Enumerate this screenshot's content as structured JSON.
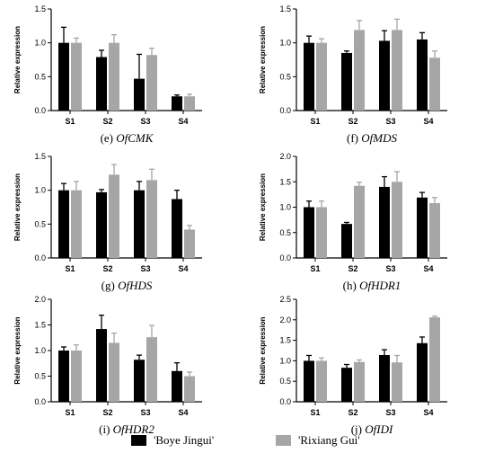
{
  "legend": [
    {
      "label": "'Boye Jingui'",
      "color": "#000000"
    },
    {
      "label": "'Rixiang Gui'",
      "color": "#a6a6a6"
    }
  ],
  "chart_data": [
    {
      "type": "bar",
      "panel": "(e)",
      "gene": "OfCMK",
      "ylabel": "Relative expression",
      "categories": [
        "S1",
        "S2",
        "S3",
        "S4"
      ],
      "ylim": [
        0,
        1.5
      ],
      "yticks": [
        "0.0",
        "0.5",
        "1.0",
        "1.5"
      ],
      "series": [
        {
          "name": "'Boye Jingui'",
          "values": [
            1.0,
            0.79,
            0.47,
            0.21
          ],
          "errors": [
            0.23,
            0.1,
            0.36,
            0.02
          ]
        },
        {
          "name": "'Rixiang Gui'",
          "values": [
            1.0,
            1.0,
            0.82,
            0.21
          ],
          "errors": [
            0.07,
            0.12,
            0.1,
            0.03
          ]
        }
      ]
    },
    {
      "type": "bar",
      "panel": "(f)",
      "gene": "OfMDS",
      "ylabel": "Relative expression",
      "categories": [
        "S1",
        "S2",
        "S3",
        "S4"
      ],
      "ylim": [
        0,
        1.5
      ],
      "yticks": [
        "0.0",
        "0.5",
        "1.0",
        "1.5"
      ],
      "series": [
        {
          "name": "'Boye Jingui'",
          "values": [
            1.0,
            0.85,
            1.03,
            1.05
          ],
          "errors": [
            0.1,
            0.03,
            0.15,
            0.1
          ]
        },
        {
          "name": "'Rixiang Gui'",
          "values": [
            1.0,
            1.19,
            1.19,
            0.78
          ],
          "errors": [
            0.06,
            0.14,
            0.16,
            0.1
          ]
        }
      ]
    },
    {
      "type": "bar",
      "panel": "(g)",
      "gene": "OfHDS",
      "ylabel": "Relative expression",
      "categories": [
        "S1",
        "S2",
        "S3",
        "S4"
      ],
      "ylim": [
        0,
        1.5
      ],
      "yticks": [
        "0.0",
        "0.5",
        "1.0",
        "1.5"
      ],
      "series": [
        {
          "name": "'Boye Jingui'",
          "values": [
            1.0,
            0.97,
            1.0,
            0.87
          ],
          "errors": [
            0.1,
            0.04,
            0.13,
            0.13
          ]
        },
        {
          "name": "'Rixiang Gui'",
          "values": [
            1.0,
            1.23,
            1.15,
            0.42
          ],
          "errors": [
            0.13,
            0.15,
            0.16,
            0.06
          ]
        }
      ]
    },
    {
      "type": "bar",
      "panel": "(h)",
      "gene": "OfHDR1",
      "ylabel": "Relative expression",
      "categories": [
        "S1",
        "S2",
        "S3",
        "S4"
      ],
      "ylim": [
        0,
        2.0
      ],
      "yticks": [
        "0.0",
        "0.5",
        "1.0",
        "1.5",
        "2.0"
      ],
      "series": [
        {
          "name": "'Boye Jingui'",
          "values": [
            1.0,
            0.67,
            1.4,
            1.19
          ],
          "errors": [
            0.12,
            0.03,
            0.2,
            0.1
          ]
        },
        {
          "name": "'Rixiang Gui'",
          "values": [
            1.0,
            1.42,
            1.5,
            1.08
          ],
          "errors": [
            0.12,
            0.07,
            0.2,
            0.11
          ]
        }
      ]
    },
    {
      "type": "bar",
      "panel": "(i)",
      "gene": "OfHDR2",
      "ylabel": "Relative expression",
      "categories": [
        "S1",
        "S2",
        "S3",
        "S4"
      ],
      "ylim": [
        0,
        2.0
      ],
      "yticks": [
        "0.0",
        "0.5",
        "1.0",
        "1.5",
        "2.0"
      ],
      "series": [
        {
          "name": "'Boye Jingui'",
          "values": [
            1.0,
            1.42,
            0.82,
            0.6
          ],
          "errors": [
            0.07,
            0.27,
            0.09,
            0.16
          ]
        },
        {
          "name": "'Rixiang Gui'",
          "values": [
            1.0,
            1.15,
            1.26,
            0.5
          ],
          "errors": [
            0.11,
            0.19,
            0.23,
            0.08
          ]
        }
      ]
    },
    {
      "type": "bar",
      "panel": "(j)",
      "gene": "OfIDI",
      "ylabel": "Relative expression",
      "categories": [
        "S1",
        "S2",
        "S3",
        "S4"
      ],
      "ylim": [
        0,
        2.5
      ],
      "yticks": [
        "0.0",
        "0.5",
        "1.0",
        "1.5",
        "2.0",
        "2.5"
      ],
      "series": [
        {
          "name": "'Boye Jingui'",
          "values": [
            1.0,
            0.83,
            1.14,
            1.43
          ],
          "errors": [
            0.13,
            0.08,
            0.13,
            0.15
          ]
        },
        {
          "name": "'Rixiang Gui'",
          "values": [
            1.0,
            0.97,
            0.96,
            2.06
          ],
          "errors": [
            0.07,
            0.05,
            0.17,
            0.03
          ]
        }
      ]
    }
  ]
}
